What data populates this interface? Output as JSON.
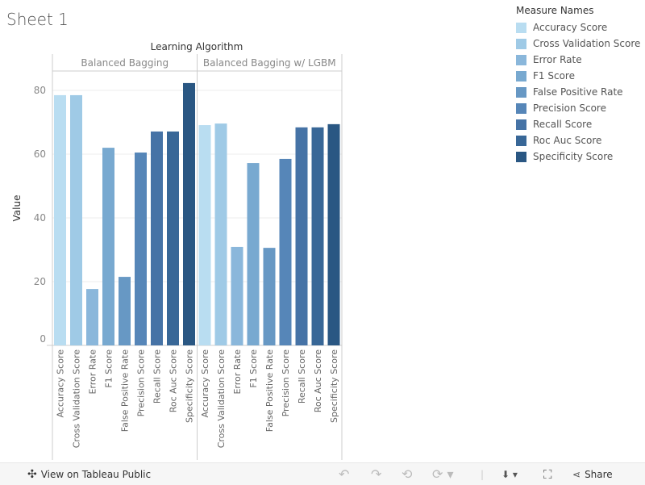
{
  "title": "Sheet 1",
  "chart_data": {
    "type": "bar",
    "column_header": "Learning Algorithm",
    "ylabel": "Value",
    "ylim": [
      0,
      87
    ],
    "yticks": [
      0,
      20,
      40,
      60,
      80
    ],
    "grid": true,
    "legend_title": "Measure Names",
    "legend_position": "right",
    "categories": [
      "Accuracy  Score",
      "Cross Validation Score",
      "Error Rate",
      "F1 Score",
      "False Positive Rate",
      "Precision Score",
      "Recall Score",
      "Roc Auc Score",
      "Specificity Score"
    ],
    "legend_entries": [
      "Accuracy Score",
      "Cross Validation Score",
      "Error Rate",
      "F1 Score",
      "False Positive Rate",
      "Precision Score",
      "Recall Score",
      "Roc Auc Score",
      "Specificity Score"
    ],
    "colors": [
      "#b9ddf1",
      "#9fcae6",
      "#8ab7db",
      "#78a9d0",
      "#6798c4",
      "#5686b8",
      "#4673a6",
      "#386797",
      "#2a5783"
    ],
    "panes": [
      {
        "name": "Balanced Bagging",
        "values": [
          78.5,
          78.5,
          17.7,
          62.0,
          21.5,
          60.5,
          67.1,
          67.1,
          82.3
        ]
      },
      {
        "name": "Balanced Bagging w/ LGBM",
        "values": [
          69.1,
          69.6,
          30.9,
          57.2,
          30.6,
          58.5,
          68.4,
          68.4,
          69.4
        ]
      }
    ]
  },
  "toolbar": {
    "view_label": "View on Tableau Public",
    "share_label": "Share"
  }
}
